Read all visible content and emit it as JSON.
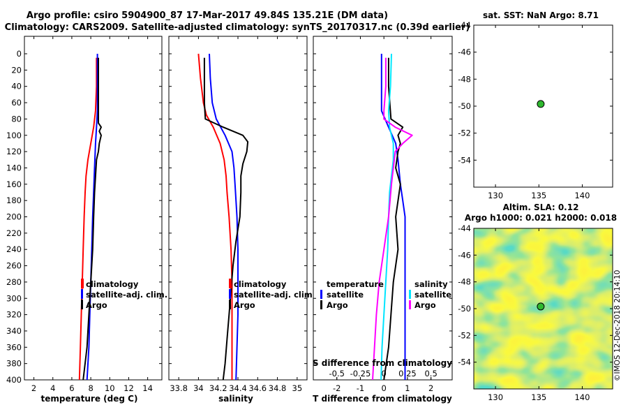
{
  "header": {
    "title_line1": "Argo profile: csiro 5904900_87 17-Mar-2017 49.84S 135.21E (DM data)",
    "title_line2": "Climatology: CARS2009. Satellite-adjusted climatology: synTS_20170317.nc (0.39d earlier)"
  },
  "colors": {
    "climatology": "#ff0000",
    "satellite": "#0000ff",
    "argo": "#000000",
    "argo_salinity_diff": "#ff00ff",
    "satellite_salinity_diff": "#00e5ff",
    "map_dot": "#2fb82f"
  },
  "credit": "©IMOS 12-Dec-2018 20:14:10",
  "chart_data": [
    {
      "id": "temperature",
      "type": "line",
      "xlabel": "temperature (deg C)",
      "ylabel": "depth",
      "xlim": [
        1,
        15.5
      ],
      "ylim": [
        400,
        0
      ],
      "xticks": [
        2,
        4,
        6,
        8,
        10,
        12,
        14
      ],
      "yticks": [
        0,
        20,
        40,
        60,
        80,
        100,
        120,
        140,
        160,
        180,
        200,
        220,
        240,
        260,
        280,
        300,
        320,
        340,
        360,
        380,
        400
      ],
      "legend": [
        "climatology",
        "satellite-adj. clim.",
        "Argo"
      ],
      "series": [
        {
          "name": "climatology",
          "color": "#ff0000",
          "depth": [
            5,
            40,
            70,
            90,
            110,
            130,
            150,
            170,
            200,
            240,
            280,
            320,
            360,
            400
          ],
          "values": [
            8.6,
            8.6,
            8.5,
            8.3,
            8.0,
            7.7,
            7.5,
            7.4,
            7.3,
            7.2,
            7.1,
            7.0,
            6.9,
            6.8
          ]
        },
        {
          "name": "satellite-adj. clim.",
          "color": "#0000ff",
          "depth": [
            0,
            40,
            70,
            90,
            110,
            140,
            170,
            200,
            240,
            280,
            320,
            360,
            400
          ],
          "values": [
            8.7,
            8.7,
            8.7,
            8.6,
            8.5,
            8.4,
            8.3,
            8.2,
            8.1,
            8.0,
            7.9,
            7.8,
            7.6
          ]
        },
        {
          "name": "Argo",
          "color": "#000000",
          "depth": [
            5,
            40,
            70,
            85,
            90,
            95,
            100,
            110,
            120,
            130,
            150,
            170,
            200,
            240,
            280,
            320,
            360,
            400
          ],
          "values": [
            8.8,
            8.8,
            8.8,
            8.8,
            9.1,
            8.9,
            9.1,
            8.9,
            8.8,
            8.6,
            8.5,
            8.4,
            8.3,
            8.2,
            8.0,
            7.8,
            7.6,
            7.2
          ]
        }
      ]
    },
    {
      "id": "salinity",
      "type": "line",
      "xlabel": "salinity",
      "ylabel": "depth",
      "xlim": [
        33.7,
        35.1
      ],
      "ylim": [
        400,
        0
      ],
      "xticks": [
        33.8,
        34,
        34.2,
        34.4,
        34.6,
        34.8,
        35
      ],
      "xticklabels": [
        "33.8",
        "34",
        "34.2",
        "34.4",
        "34.6",
        "34.8",
        "35"
      ],
      "legend": [
        "climatology",
        "satellite-adj. clim.",
        "Argo"
      ],
      "series": [
        {
          "name": "climatology",
          "color": "#ff0000",
          "depth": [
            0,
            30,
            60,
            75,
            90,
            110,
            130,
            150,
            170,
            200,
            240,
            280,
            320,
            360,
            400
          ],
          "values": [
            34.0,
            34.02,
            34.05,
            34.08,
            34.15,
            34.22,
            34.26,
            34.28,
            34.29,
            34.31,
            34.33,
            34.34,
            34.34,
            34.34,
            34.34
          ]
        },
        {
          "name": "satellite-adj. clim.",
          "color": "#0000ff",
          "depth": [
            0,
            30,
            60,
            80,
            100,
            120,
            140,
            160,
            180,
            200,
            240,
            280,
            320,
            360,
            400
          ],
          "values": [
            34.11,
            34.12,
            34.14,
            34.18,
            34.27,
            34.34,
            34.36,
            34.37,
            34.38,
            34.39,
            34.4,
            34.4,
            34.4,
            34.39,
            34.38
          ]
        },
        {
          "name": "Argo",
          "color": "#000000",
          "depth": [
            5,
            30,
            60,
            80,
            90,
            100,
            108,
            120,
            135,
            150,
            170,
            200,
            230,
            260,
            290,
            320,
            350,
            380,
            400
          ],
          "values": [
            34.06,
            34.06,
            34.06,
            34.07,
            34.25,
            34.45,
            34.5,
            34.49,
            34.45,
            34.43,
            34.43,
            34.42,
            34.38,
            34.35,
            34.33,
            34.31,
            34.29,
            34.27,
            34.25
          ]
        }
      ]
    },
    {
      "id": "difference",
      "type": "line",
      "xlabel": "T difference from climatology",
      "xlabel_top": "S difference from climatology",
      "ylabel": "depth",
      "xlim": [
        -3.0,
        2.9
      ],
      "ylim": [
        400,
        0
      ],
      "xticks": [
        -2,
        -1,
        0,
        1,
        2
      ],
      "xticks_top": [
        -0.5,
        -0.25,
        0,
        0.25,
        0.5
      ],
      "xticks_top_labels": [
        "-0.5",
        "-0.25",
        "0",
        "0.25",
        "0.5"
      ],
      "legend_temperature": {
        "title": "temperature",
        "items": [
          "satellite",
          "Argo"
        ]
      },
      "legend_salinity": {
        "title": "salinity",
        "items": [
          "satellite",
          "Argo"
        ]
      },
      "series": [
        {
          "name": "temperature satellite",
          "color": "#0000ff",
          "depth": [
            0,
            40,
            70,
            90,
            110,
            130,
            160,
            180,
            200,
            240,
            280,
            320,
            360,
            400
          ],
          "values": [
            -0.1,
            -0.1,
            -0.1,
            0.2,
            0.5,
            0.6,
            0.7,
            0.8,
            0.9,
            0.9,
            0.9,
            0.9,
            0.9,
            0.9
          ]
        },
        {
          "name": "temperature Argo",
          "color": "#000000",
          "depth": [
            5,
            40,
            80,
            90,
            100,
            110,
            120,
            140,
            160,
            200,
            240,
            280,
            320,
            360,
            400
          ],
          "values": [
            0.2,
            0.2,
            0.3,
            0.8,
            0.6,
            0.7,
            0.6,
            0.5,
            0.7,
            0.5,
            0.6,
            0.4,
            0.3,
            0.2,
            0.0
          ]
        },
        {
          "name": "salinity satellite",
          "color": "#00e5ff",
          "depth": [
            0,
            40,
            70,
            90,
            110,
            130,
            150,
            170,
            200,
            240,
            280,
            320,
            360,
            400
          ],
          "values": [
            0.08,
            0.07,
            0.05,
            0.06,
            0.1,
            0.1,
            0.08,
            0.06,
            0.05,
            0.04,
            0.02,
            0.0,
            -0.02,
            -0.03
          ]
        },
        {
          "name": "salinity Argo",
          "color": "#ff00ff",
          "depth": [
            5,
            40,
            70,
            80,
            90,
            100,
            110,
            120,
            140,
            160,
            200,
            240,
            280,
            320,
            360,
            400
          ],
          "values": [
            0.02,
            0.02,
            0.0,
            0.0,
            0.12,
            0.3,
            0.2,
            0.12,
            0.1,
            0.08,
            0.05,
            0.0,
            -0.05,
            -0.08,
            -0.1,
            -0.12
          ]
        }
      ]
    },
    {
      "id": "sst_map",
      "type": "scatter",
      "title": "sat. SST: NaN Argo: 8.71",
      "xlim": [
        127.5,
        143.5
      ],
      "ylim": [
        -56,
        -44
      ],
      "xticks": [
        130,
        135,
        140
      ],
      "yticks": [
        -44,
        -46,
        -48,
        -50,
        -52,
        -54
      ],
      "points": [
        {
          "lon": 135.21,
          "lat": -49.84
        }
      ]
    },
    {
      "id": "sla_map",
      "type": "heatmap",
      "title": "Altim. SLA: 0.12",
      "subtitle": "Argo h1000: 0.021 h2000: 0.018",
      "xlim": [
        127.5,
        143.5
      ],
      "ylim": [
        -56,
        -44
      ],
      "xticks": [
        130,
        135,
        140
      ],
      "yticks": [
        -44,
        -46,
        -48,
        -50,
        -52,
        -54
      ],
      "points": [
        {
          "lon": 135.21,
          "lat": -49.84
        }
      ]
    }
  ]
}
